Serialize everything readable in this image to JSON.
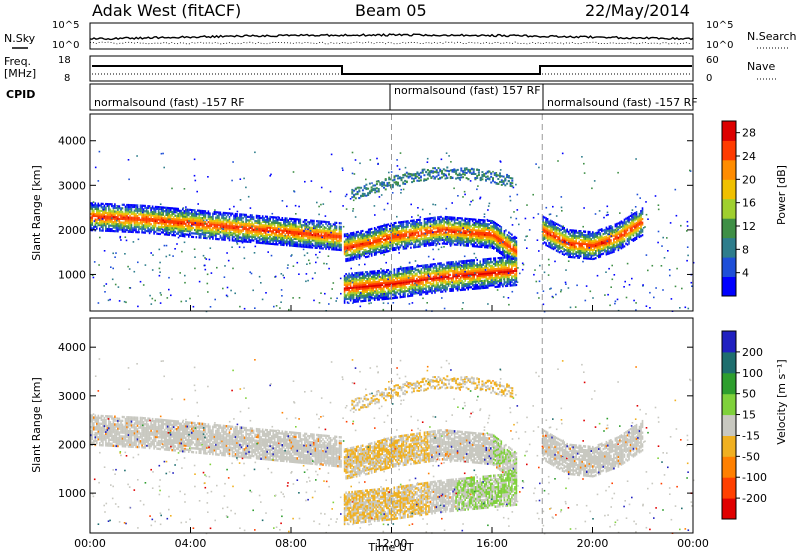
{
  "header": {
    "title": "Adak West (fitACF)",
    "beam": "Beam 05",
    "date": "22/May/2014"
  },
  "strips": {
    "nsky_label": "N.Sky",
    "nsky_ticks": [
      "10^5",
      "10^0"
    ],
    "nsearch_label": "N.Search",
    "nsearch_ticks": [
      "10^5",
      "10^0"
    ],
    "freq_label_1": "Freq.",
    "freq_label_2": "[MHz]",
    "freq_ticks": [
      "18",
      "8"
    ],
    "nave_label": "Nave",
    "nave_ticks": [
      "60",
      "0"
    ],
    "cpid_label": "CPID",
    "cpid_segments": [
      {
        "text": "normalsound (fast) -157 RF",
        "start_hour": 0
      },
      {
        "text": "normalsound (fast) 157 RF",
        "start_hour": 12
      },
      {
        "text": "normalsound (fast) -157 RF",
        "start_hour": 18
      }
    ]
  },
  "chart_data": [
    {
      "type": "heatmap",
      "xlabel": "Time UT",
      "ylabel": "Slant Range [km]",
      "x_ticks": [
        "00:00",
        "04:00",
        "08:00",
        "12:00",
        "16:00",
        "20:00",
        "00:00"
      ],
      "xlim_hours": [
        0,
        24
      ],
      "y_ticks": [
        1000,
        2000,
        3000,
        4000
      ],
      "ylim": [
        180,
        4600
      ],
      "colorbar": {
        "label": "Power [dB]",
        "ticks": [
          4,
          8,
          12,
          16,
          20,
          24,
          28
        ],
        "range": [
          0,
          30
        ],
        "colors": [
          "#0000ff",
          "#1e4fd8",
          "#2e7d8c",
          "#3f8f46",
          "#9fcf2f",
          "#f0c000",
          "#ff8c00",
          "#ff3b00",
          "#dd0000"
        ]
      },
      "echo_bands": [
        {
          "label": "main layer",
          "hours": [
            0,
            2,
            4,
            6,
            8,
            10
          ],
          "range_km": [
            2300,
            2250,
            2150,
            2050,
            1950,
            1850
          ]
        },
        {
          "label": "main layer",
          "hours": [
            10.1,
            11,
            12,
            14,
            16,
            17
          ],
          "range_km": [
            1600,
            1700,
            1850,
            2000,
            1900,
            1500
          ]
        },
        {
          "label": "lower layer",
          "hours": [
            10.1,
            12,
            14,
            16,
            17
          ],
          "range_km": [
            700,
            800,
            950,
            1050,
            1100
          ]
        },
        {
          "label": "main layer",
          "hours": [
            18,
            19,
            20,
            21,
            22
          ],
          "range_km": [
            2000,
            1700,
            1650,
            1850,
            2200
          ]
        }
      ]
    },
    {
      "type": "heatmap",
      "xlabel": "Time UT",
      "ylabel": "Slant Range [km]",
      "x_ticks": [
        "00:00",
        "04:00",
        "08:00",
        "12:00",
        "16:00",
        "20:00",
        "00:00"
      ],
      "xlim_hours": [
        0,
        24
      ],
      "y_ticks": [
        1000,
        2000,
        3000,
        4000
      ],
      "ylim": [
        180,
        4600
      ],
      "colorbar": {
        "label": "Velocity [m s⁻¹]",
        "ticks": [
          200,
          100,
          50,
          15,
          -15,
          -50,
          -100,
          -200
        ],
        "colors": [
          "#2020c0",
          "#1e6e6e",
          "#2e9e2e",
          "#7fd13b",
          "#c8c8c0",
          "#f0b020",
          "#ff8000",
          "#ff4000",
          "#e00000"
        ]
      }
    }
  ]
}
